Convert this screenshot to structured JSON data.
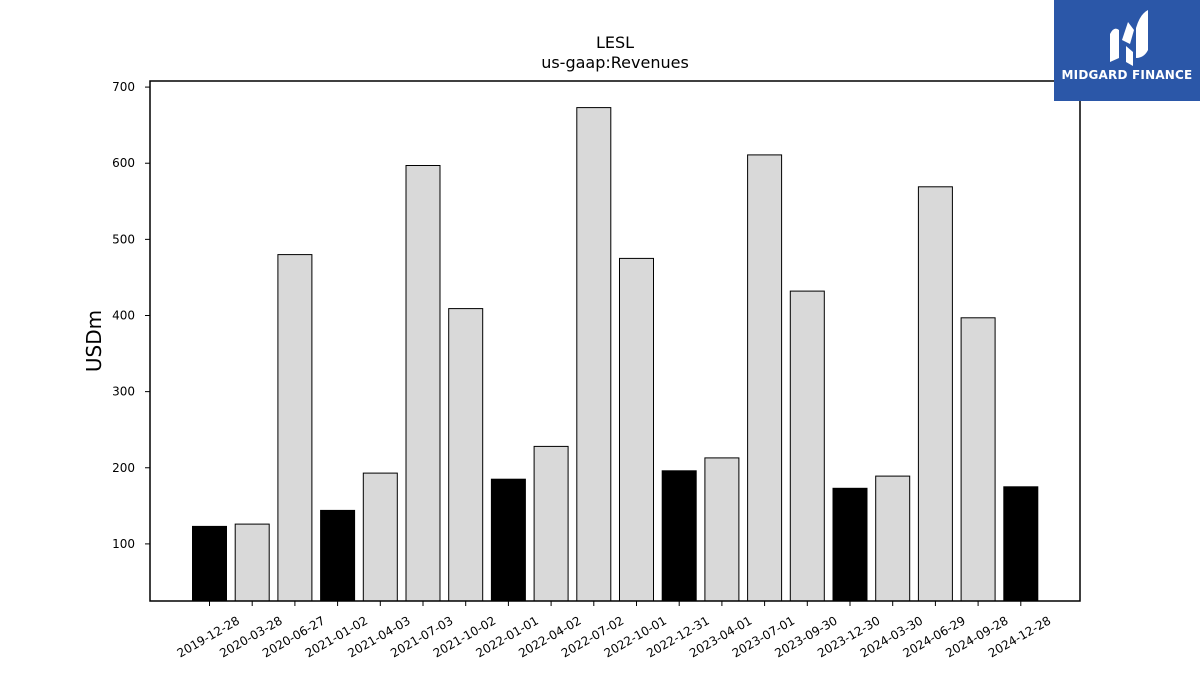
{
  "chart_data": {
    "type": "bar",
    "title": "LESL",
    "subtitle": "us-gaap:Revenues",
    "ylabel": "USDm",
    "xlabel": "",
    "ylim": [
      25,
      708
    ],
    "yticks": [
      100,
      200,
      300,
      400,
      500,
      600,
      700
    ],
    "grid": false,
    "categories": [
      "2019-12-28",
      "2020-03-28",
      "2020-06-27",
      "2021-01-02",
      "2021-04-03",
      "2021-07-03",
      "2021-10-02",
      "2022-01-01",
      "2022-04-02",
      "2022-07-02",
      "2022-10-01",
      "2022-12-31",
      "2023-04-01",
      "2023-07-01",
      "2023-09-30",
      "2023-12-30",
      "2024-03-30",
      "2024-06-29",
      "2024-09-28",
      "2024-12-28"
    ],
    "values": [
      123,
      126,
      480,
      144,
      193,
      597,
      409,
      185,
      228,
      673,
      475,
      196,
      213,
      611,
      432,
      173,
      189,
      569,
      397,
      175
    ],
    "highlighted": [
      true,
      false,
      false,
      true,
      false,
      false,
      false,
      true,
      false,
      false,
      false,
      true,
      false,
      false,
      false,
      true,
      false,
      false,
      false,
      true
    ],
    "colors": {
      "highlight": "#000000",
      "normal": "#d9d9d9",
      "edge": "#000000"
    }
  },
  "logo": {
    "text": "MIDGARD FINANCE",
    "background": "#2b57a8"
  }
}
